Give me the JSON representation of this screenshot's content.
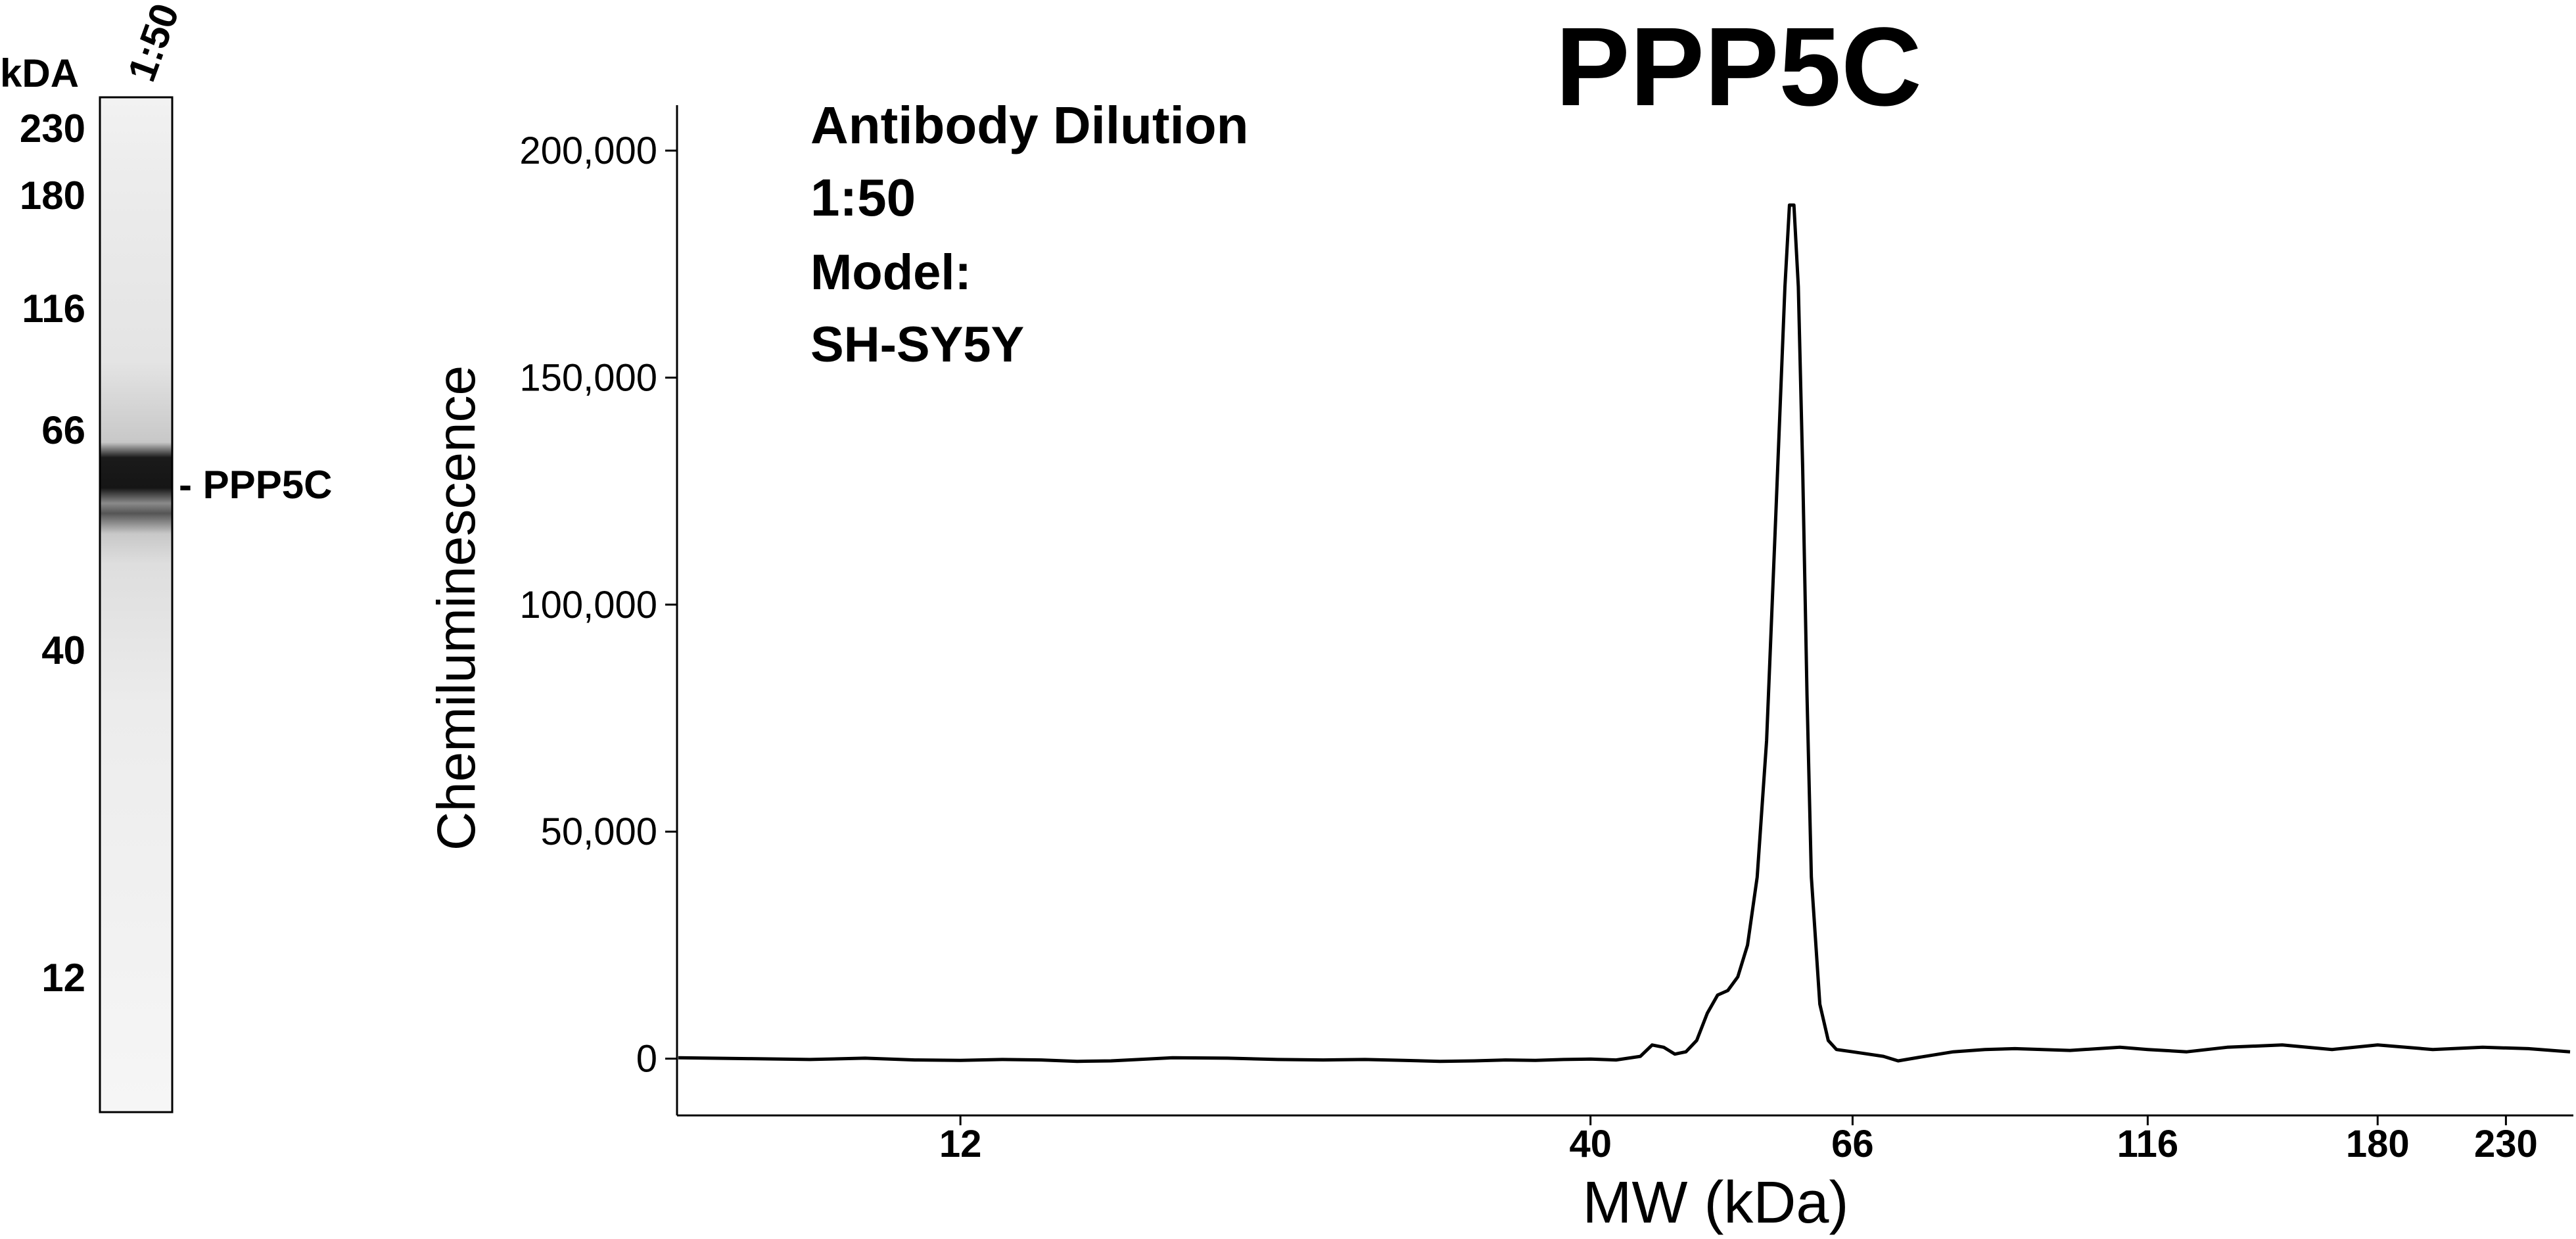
{
  "blot": {
    "unit_label": "kDA",
    "lane_label": "1:50",
    "markers": [
      "230",
      "180",
      "116",
      "66",
      "40",
      "12"
    ],
    "band_label": "- PPP5C"
  },
  "chart_data": {
    "type": "line",
    "title": "PPP5C",
    "annotations": [
      "Antibody Dilution",
      "1:50",
      "Model:",
      "SH-SY5Y"
    ],
    "xlabel": "MW (kDa)",
    "ylabel": "Chemiluminescence",
    "x_scale": "log",
    "x_ticks": [
      12,
      40,
      66,
      116,
      180,
      230
    ],
    "x_tick_labels": [
      "12",
      "40",
      "66",
      "116",
      "180",
      "230"
    ],
    "xlim": [
      7,
      260
    ],
    "y_ticks": [
      0,
      50000,
      100000,
      150000,
      200000
    ],
    "y_tick_labels": [
      "0",
      "50,000",
      "100,000",
      "150,000",
      "200,000"
    ],
    "ylim": [
      -11500,
      210000
    ],
    "grid": false,
    "series": [
      {
        "x": [
          7,
          8,
          9,
          10,
          11,
          12,
          13,
          14,
          15,
          16,
          18,
          20,
          22,
          24,
          26,
          28,
          30,
          32,
          34,
          36,
          38,
          40,
          42,
          44,
          45,
          46,
          47,
          48,
          49,
          50,
          51,
          52,
          53,
          54,
          55,
          56,
          57,
          58,
          58.5,
          59,
          59.5,
          60,
          60.5,
          61,
          62,
          63,
          64,
          66,
          68,
          70,
          72,
          75,
          80,
          85,
          90,
          100,
          110,
          116,
          125,
          135,
          150,
          165,
          180,
          200,
          220,
          240,
          260
        ],
        "y": [
          200,
          0,
          -200,
          100,
          -300,
          -400,
          -200,
          -300,
          -600,
          -500,
          200,
          100,
          -200,
          -300,
          -200,
          -400,
          -600,
          -500,
          -300,
          -400,
          -200,
          -100,
          -300,
          500,
          3000,
          2500,
          1000,
          1500,
          4000,
          10000,
          14000,
          15000,
          18000,
          25000,
          40000,
          70000,
          120000,
          170000,
          188000,
          188000,
          170000,
          130000,
          80000,
          40000,
          12000,
          4000,
          2000,
          1500,
          1000,
          500,
          -500,
          300,
          1500,
          2000,
          2200,
          1800,
          2500,
          2000,
          1500,
          2500,
          3000,
          2000,
          3000,
          2000,
          2500,
          2200,
          1500
        ]
      }
    ]
  }
}
